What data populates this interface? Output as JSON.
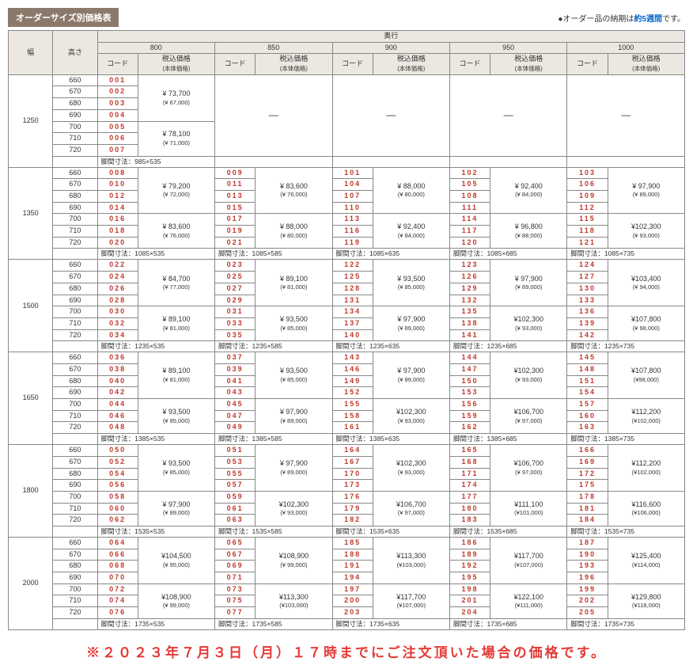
{
  "title": "オーダーサイズ別価格表",
  "note_prefix": "●オーダー品の納期は",
  "note_hl": "約5週間",
  "note_suffix": "です。",
  "col_width": "幅",
  "col_height": "高さ",
  "col_depth": "奥行",
  "depths": [
    "800",
    "850",
    "900",
    "950",
    "1000"
  ],
  "sub_code": "コード",
  "sub_price": "税込価格",
  "sub_price_sub": "(本体価格)",
  "heights": [
    "660",
    "670",
    "680",
    "690",
    "700",
    "710",
    "720"
  ],
  "leg_label": "脚間寸法：",
  "dash": "—",
  "footer": "※２０２３年７月３日（月）１７時までにご注文頂いた場合の価格です。",
  "groups": [
    {
      "width": "1250",
      "legs": [
        "985×535",
        "",
        "",
        "",
        ""
      ],
      "cols": [
        {
          "codes": [
            "001",
            "002",
            "003",
            "004",
            "005",
            "006",
            "007"
          ],
          "prices": [
            {
              "span": 4,
              "t": "¥ 73,700",
              "b": "(¥  67,000)"
            },
            {
              "span": 3,
              "t": "¥ 78,100",
              "b": "(¥  71,000)"
            }
          ]
        },
        {
          "dash": true
        },
        {
          "dash": true
        },
        {
          "dash": true
        },
        {
          "dash": true
        }
      ]
    },
    {
      "width": "1350",
      "legs": [
        "1085×535",
        "1085×585",
        "1085×635",
        "1085×685",
        "1085×735"
      ],
      "cols": [
        {
          "codes": [
            "008",
            "010",
            "012",
            "014",
            "016",
            "018",
            "020"
          ],
          "prices": [
            {
              "span": 4,
              "t": "¥ 79,200",
              "b": "(¥  72,000)"
            },
            {
              "span": 3,
              "t": "¥ 83,600",
              "b": "(¥  76,000)"
            }
          ]
        },
        {
          "codes": [
            "009",
            "011",
            "013",
            "015",
            "017",
            "019",
            "021"
          ],
          "prices": [
            {
              "span": 4,
              "t": "¥ 83,600",
              "b": "(¥  76,000)"
            },
            {
              "span": 3,
              "t": "¥ 88,000",
              "b": "(¥  80,000)"
            }
          ]
        },
        {
          "codes": [
            "101",
            "104",
            "107",
            "110",
            "113",
            "116",
            "119"
          ],
          "prices": [
            {
              "span": 4,
              "t": "¥ 88,000",
              "b": "(¥  80,000)"
            },
            {
              "span": 3,
              "t": "¥ 92,400",
              "b": "(¥  84,000)"
            }
          ]
        },
        {
          "codes": [
            "102",
            "105",
            "108",
            "111",
            "114",
            "117",
            "120"
          ],
          "prices": [
            {
              "span": 4,
              "t": "¥ 92,400",
              "b": "(¥  84,000)"
            },
            {
              "span": 3,
              "t": "¥ 96,800",
              "b": "(¥  88,000)"
            }
          ]
        },
        {
          "codes": [
            "103",
            "106",
            "109",
            "112",
            "115",
            "118",
            "121"
          ],
          "prices": [
            {
              "span": 4,
              "t": "¥ 97,900",
              "b": "(¥  89,000)"
            },
            {
              "span": 3,
              "t": "¥102,300",
              "b": "(¥  93,000)"
            }
          ]
        }
      ]
    },
    {
      "width": "1500",
      "legs": [
        "1235×535",
        "1235×585",
        "1235×635",
        "1235×685",
        "1235×735"
      ],
      "cols": [
        {
          "codes": [
            "022",
            "024",
            "026",
            "028",
            "030",
            "032",
            "034"
          ],
          "prices": [
            {
              "span": 4,
              "t": "¥ 84,700",
              "b": "(¥  77,000)"
            },
            {
              "span": 3,
              "t": "¥ 89,100",
              "b": "(¥  81,000)"
            }
          ]
        },
        {
          "codes": [
            "023",
            "025",
            "027",
            "029",
            "031",
            "033",
            "035"
          ],
          "prices": [
            {
              "span": 4,
              "t": "¥ 89,100",
              "b": "(¥  81,000)"
            },
            {
              "span": 3,
              "t": "¥ 93,500",
              "b": "(¥  85,000)"
            }
          ]
        },
        {
          "codes": [
            "122",
            "125",
            "128",
            "131",
            "134",
            "137",
            "140"
          ],
          "prices": [
            {
              "span": 4,
              "t": "¥ 93,500",
              "b": "(¥  85,000)"
            },
            {
              "span": 3,
              "t": "¥ 97,900",
              "b": "(¥  89,000)"
            }
          ]
        },
        {
          "codes": [
            "123",
            "126",
            "129",
            "132",
            "135",
            "138",
            "141"
          ],
          "prices": [
            {
              "span": 4,
              "t": "¥ 97,900",
              "b": "(¥  89,000)"
            },
            {
              "span": 3,
              "t": "¥102,300",
              "b": "(¥  93,000)"
            }
          ]
        },
        {
          "codes": [
            "124",
            "127",
            "130",
            "133",
            "136",
            "139",
            "142"
          ],
          "prices": [
            {
              "span": 4,
              "t": "¥103,400",
              "b": "(¥  94,000)"
            },
            {
              "span": 3,
              "t": "¥107,800",
              "b": "(¥  98,000)"
            }
          ]
        }
      ]
    },
    {
      "width": "1650",
      "legs": [
        "1385×535",
        "1385×585",
        "1385×635",
        "1385×685",
        "1385×735"
      ],
      "cols": [
        {
          "codes": [
            "036",
            "038",
            "040",
            "042",
            "044",
            "046",
            "048"
          ],
          "prices": [
            {
              "span": 4,
              "t": "¥ 89,100",
              "b": "(¥  81,000)"
            },
            {
              "span": 3,
              "t": "¥ 93,500",
              "b": "(¥  85,000)"
            }
          ]
        },
        {
          "codes": [
            "037",
            "039",
            "041",
            "043",
            "045",
            "047",
            "049"
          ],
          "prices": [
            {
              "span": 4,
              "t": "¥ 93,500",
              "b": "(¥  85,000)"
            },
            {
              "span": 3,
              "t": "¥ 97,900",
              "b": "(¥  89,000)"
            }
          ]
        },
        {
          "codes": [
            "143",
            "146",
            "149",
            "152",
            "155",
            "158",
            "161"
          ],
          "prices": [
            {
              "span": 4,
              "t": "¥ 97,900",
              "b": "(¥  89,000)"
            },
            {
              "span": 3,
              "t": "¥102,300",
              "b": "(¥  93,000)"
            }
          ]
        },
        {
          "codes": [
            "144",
            "147",
            "150",
            "153",
            "156",
            "159",
            "162"
          ],
          "prices": [
            {
              "span": 4,
              "t": "¥102,300",
              "b": "(¥  93,000)"
            },
            {
              "span": 3,
              "t": "¥106,700",
              "b": "(¥  97,000)"
            }
          ]
        },
        {
          "codes": [
            "145",
            "148",
            "151",
            "154",
            "157",
            "160",
            "163"
          ],
          "prices": [
            {
              "span": 4,
              "t": "¥107,800",
              "b": "(¥98,000)"
            },
            {
              "span": 3,
              "t": "¥112,200",
              "b": "(¥102,000)"
            }
          ]
        }
      ]
    },
    {
      "width": "1800",
      "legs": [
        "1535×535",
        "1535×585",
        "1535×635",
        "1535×685",
        "1535×735"
      ],
      "cols": [
        {
          "codes": [
            "050",
            "052",
            "054",
            "056",
            "058",
            "060",
            "062"
          ],
          "prices": [
            {
              "span": 4,
              "t": "¥ 93,500",
              "b": "(¥  85,000)"
            },
            {
              "span": 3,
              "t": "¥ 97,900",
              "b": "(¥  89,000)"
            }
          ]
        },
        {
          "codes": [
            "051",
            "053",
            "055",
            "057",
            "059",
            "061",
            "063"
          ],
          "prices": [
            {
              "span": 4,
              "t": "¥ 97,900",
              "b": "(¥  89,000)"
            },
            {
              "span": 3,
              "t": "¥102,300",
              "b": "(¥  93,000)"
            }
          ]
        },
        {
          "codes": [
            "164",
            "167",
            "170",
            "173",
            "176",
            "179",
            "182"
          ],
          "prices": [
            {
              "span": 4,
              "t": "¥102,300",
              "b": "(¥  93,000)"
            },
            {
              "span": 3,
              "t": "¥106,700",
              "b": "(¥  97,000)"
            }
          ]
        },
        {
          "codes": [
            "165",
            "168",
            "171",
            "174",
            "177",
            "180",
            "183"
          ],
          "prices": [
            {
              "span": 4,
              "t": "¥106,700",
              "b": "(¥  97,000)"
            },
            {
              "span": 3,
              "t": "¥111,100",
              "b": "(¥101,000)"
            }
          ]
        },
        {
          "codes": [
            "166",
            "169",
            "172",
            "175",
            "178",
            "181",
            "184"
          ],
          "prices": [
            {
              "span": 4,
              "t": "¥112,200",
              "b": "(¥102,000)"
            },
            {
              "span": 3,
              "t": "¥116,600",
              "b": "(¥106,000)"
            }
          ]
        }
      ]
    },
    {
      "width": "2000",
      "legs": [
        "1735×535",
        "1735×585",
        "1735×635",
        "1735×685",
        "1735×735"
      ],
      "cols": [
        {
          "codes": [
            "064",
            "066",
            "068",
            "070",
            "072",
            "074",
            "076"
          ],
          "prices": [
            {
              "span": 4,
              "t": "¥104,500",
              "b": "(¥  95,000)"
            },
            {
              "span": 3,
              "t": "¥108,900",
              "b": "(¥  99,000)"
            }
          ]
        },
        {
          "codes": [
            "065",
            "067",
            "069",
            "071",
            "073",
            "075",
            "077"
          ],
          "prices": [
            {
              "span": 4,
              "t": "¥108,900",
              "b": "(¥  99,000)"
            },
            {
              "span": 3,
              "t": "¥113,300",
              "b": "(¥103,000)"
            }
          ]
        },
        {
          "codes": [
            "185",
            "188",
            "191",
            "194",
            "197",
            "200",
            "203"
          ],
          "prices": [
            {
              "span": 4,
              "t": "¥113,300",
              "b": "(¥103,000)"
            },
            {
              "span": 3,
              "t": "¥117,700",
              "b": "(¥107,000)"
            }
          ]
        },
        {
          "codes": [
            "186",
            "189",
            "192",
            "195",
            "198",
            "201",
            "204"
          ],
          "prices": [
            {
              "span": 4,
              "t": "¥117,700",
              "b": "(¥107,000)"
            },
            {
              "span": 3,
              "t": "¥122,100",
              "b": "(¥111,000)"
            }
          ]
        },
        {
          "codes": [
            "187",
            "190",
            "193",
            "196",
            "199",
            "202",
            "205"
          ],
          "prices": [
            {
              "span": 4,
              "t": "¥125,400",
              "b": "(¥114,000)"
            },
            {
              "span": 3,
              "t": "¥129,800",
              "b": "(¥118,000)"
            }
          ]
        }
      ]
    }
  ]
}
